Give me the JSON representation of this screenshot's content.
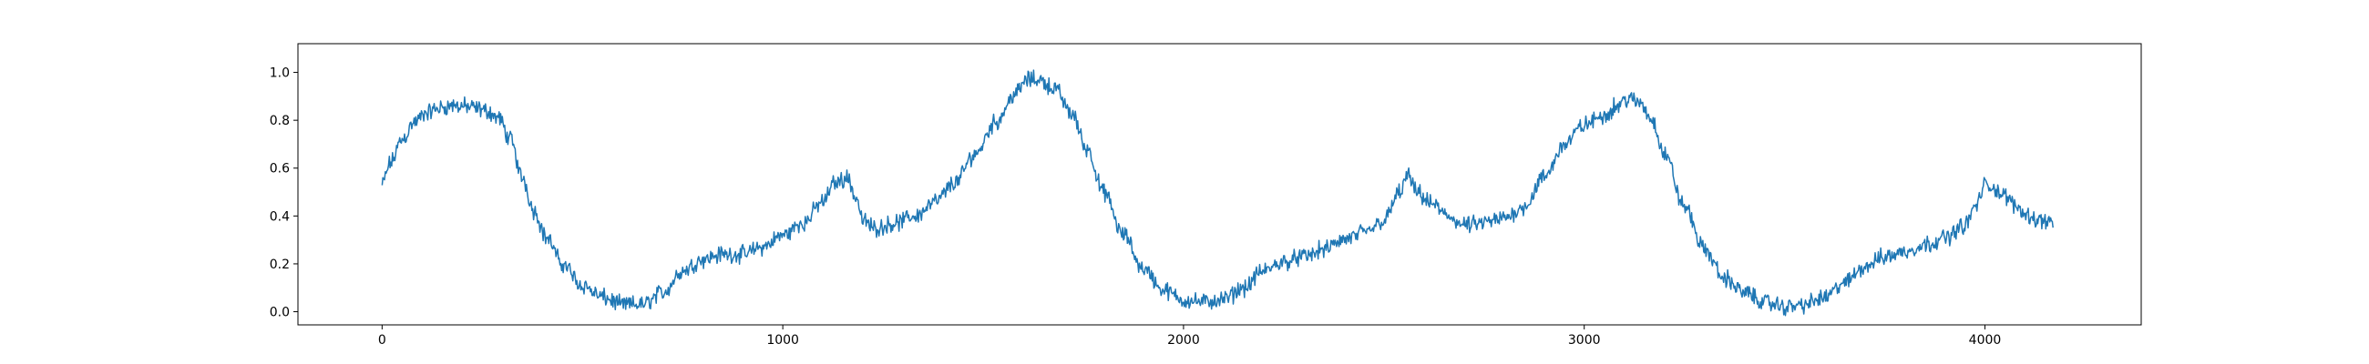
{
  "chart_data": {
    "type": "line",
    "title": "",
    "xlabel": "",
    "ylabel": "",
    "xlim": [
      -210,
      4390
    ],
    "ylim": [
      -0.055,
      1.12
    ],
    "grid": false,
    "legend": "none",
    "x_ticks": [
      0,
      1000,
      2000,
      3000,
      4000
    ],
    "x_tick_labels": [
      "0",
      "1000",
      "2000",
      "3000",
      "4000"
    ],
    "y_ticks": [
      0.0,
      0.2,
      0.4,
      0.6,
      0.8,
      1.0
    ],
    "y_tick_labels": [
      "0.0",
      "0.2",
      "0.4",
      "0.6",
      "0.8",
      "1.0"
    ],
    "series": [
      {
        "color": "#1f77b4",
        "x": [
          0,
          20,
          50,
          80,
          110,
          140,
          170,
          200,
          230,
          260,
          290,
          320,
          350,
          380,
          410,
          450,
          500,
          550,
          600,
          650,
          700,
          750,
          800,
          850,
          900,
          950,
          1000,
          1050,
          1100,
          1130,
          1160,
          1185,
          1200,
          1230,
          1280,
          1330,
          1380,
          1430,
          1480,
          1530,
          1580,
          1610,
          1640,
          1680,
          1720,
          1760,
          1800,
          1850,
          1900,
          1950,
          2000,
          2050,
          2100,
          2150,
          2200,
          2250,
          2300,
          2350,
          2400,
          2450,
          2500,
          2540,
          2560,
          2580,
          2620,
          2660,
          2700,
          2750,
          2800,
          2850,
          2900,
          2950,
          3000,
          3050,
          3080,
          3110,
          3140,
          3170,
          3200,
          3250,
          3300,
          3350,
          3400,
          3450,
          3500,
          3550,
          3600,
          3650,
          3700,
          3750,
          3800,
          3850,
          3900,
          3950,
          3980,
          4000,
          4020,
          4050,
          4080,
          4110,
          4140,
          4170
        ],
        "y": [
          0.53,
          0.62,
          0.72,
          0.79,
          0.83,
          0.85,
          0.86,
          0.86,
          0.85,
          0.84,
          0.81,
          0.72,
          0.56,
          0.42,
          0.31,
          0.2,
          0.11,
          0.06,
          0.03,
          0.03,
          0.08,
          0.17,
          0.22,
          0.24,
          0.24,
          0.27,
          0.32,
          0.37,
          0.46,
          0.54,
          0.56,
          0.47,
          0.38,
          0.35,
          0.37,
          0.4,
          0.46,
          0.54,
          0.66,
          0.79,
          0.91,
          0.97,
          0.97,
          0.93,
          0.83,
          0.68,
          0.5,
          0.32,
          0.18,
          0.09,
          0.05,
          0.04,
          0.05,
          0.1,
          0.17,
          0.21,
          0.23,
          0.26,
          0.3,
          0.33,
          0.38,
          0.5,
          0.57,
          0.5,
          0.45,
          0.4,
          0.36,
          0.37,
          0.39,
          0.44,
          0.56,
          0.7,
          0.78,
          0.82,
          0.86,
          0.89,
          0.87,
          0.8,
          0.66,
          0.44,
          0.26,
          0.14,
          0.08,
          0.04,
          0.02,
          0.03,
          0.06,
          0.12,
          0.19,
          0.23,
          0.25,
          0.28,
          0.31,
          0.36,
          0.45,
          0.53,
          0.52,
          0.48,
          0.44,
          0.4,
          0.38,
          0.38
        ],
        "noise": 0.022
      }
    ]
  }
}
